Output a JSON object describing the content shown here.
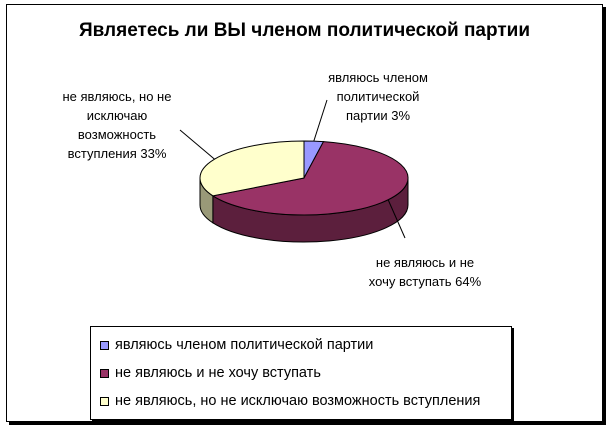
{
  "chart_data": {
    "type": "pie",
    "title": "Являетесь ли ВЫ членом политической партии",
    "slices": [
      {
        "label": "являюсь членом политической партии",
        "value": 3,
        "color": "#9999ff",
        "side": "#5c5c99",
        "data_label": "являюсь членом\nполитической\nпартии 3%"
      },
      {
        "label": "не являюсь и не хочу вступать",
        "value": 64,
        "color": "#993366",
        "side": "#5c1f3d",
        "data_label": "не являюсь и не\nхочу вступать 64%"
      },
      {
        "label": "не являюсь, но не исключаю возможность вступления",
        "value": 33,
        "color": "#ffffcc",
        "side": "#999978",
        "data_label": "не являюсь, но не\nисключаю\nвозможность\nвступления 33%"
      }
    ],
    "legend_position": "bottom"
  }
}
